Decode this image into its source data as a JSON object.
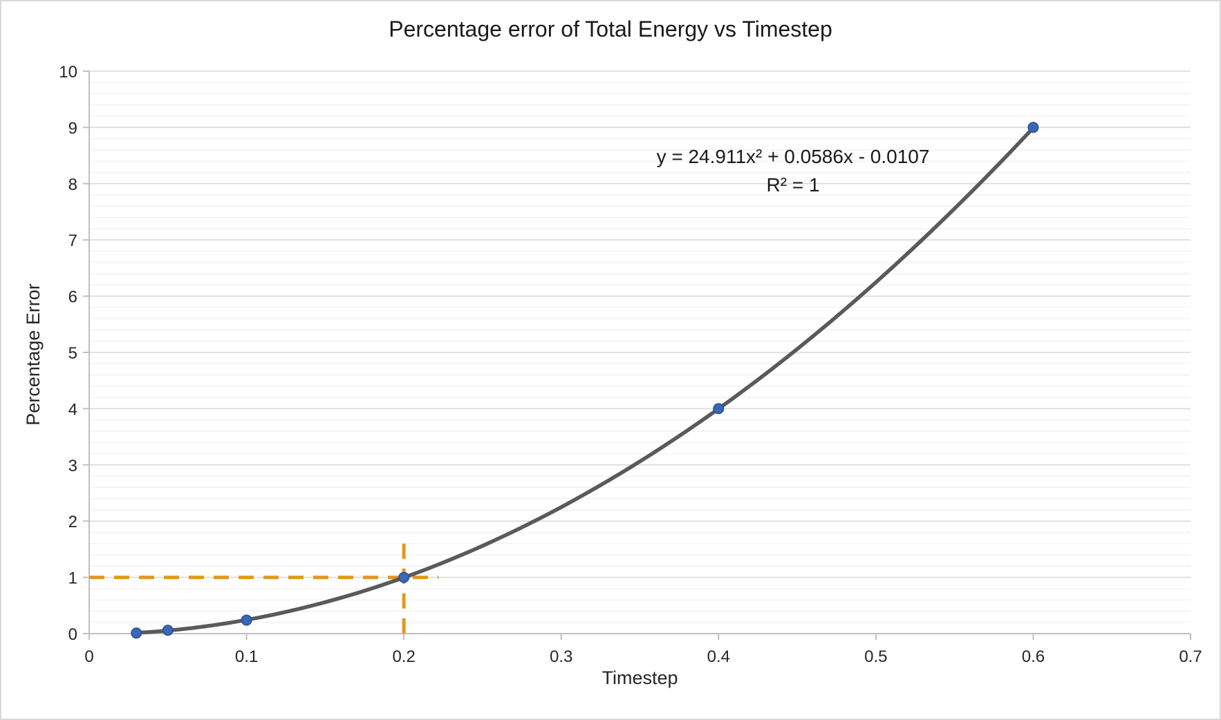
{
  "chart_data": {
    "type": "scatter",
    "title": "Percentage error of Total Energy vs Timestep",
    "xlabel": "Timestep",
    "ylabel": "Percentage Error",
    "xlim": [
      0,
      0.7
    ],
    "ylim": [
      0,
      10
    ],
    "x_tick_step": 0.1,
    "x_tick_labels": [
      "0",
      "0.1",
      "0.2",
      "0.3",
      "0.4",
      "0.5",
      "0.6",
      "0.7"
    ],
    "y_tick_step": 1,
    "y_tick_labels": [
      "0",
      "1",
      "2",
      "3",
      "4",
      "5",
      "6",
      "7",
      "8",
      "9",
      "10"
    ],
    "y_minor_step": 0.2,
    "grid": {
      "y_major": true,
      "y_minor": true,
      "x_major": false
    },
    "legend": "none",
    "points": [
      {
        "x": 0.03,
        "y": 0.01
      },
      {
        "x": 0.05,
        "y": 0.06
      },
      {
        "x": 0.1,
        "y": 0.24
      },
      {
        "x": 0.2,
        "y": 1.0
      },
      {
        "x": 0.4,
        "y": 4.0
      },
      {
        "x": 0.6,
        "y": 9.0
      }
    ],
    "trendline": {
      "kind": "quadratic",
      "coefficients": {
        "a": 24.911,
        "b": 0.0586,
        "c": -0.0107
      },
      "x_domain": [
        0.03,
        0.6
      ],
      "equation_label": "y = 24.911x² + 0.0586x - 0.0107",
      "r_squared_label": "R² = 1"
    },
    "crosshair": {
      "point": {
        "x": 0.2,
        "y": 1
      },
      "h_line": {
        "y": 1,
        "x_from": 0,
        "x_to": 0.222
      },
      "v_line": {
        "x": 0.2,
        "y_from": 0,
        "y_to": 1.6
      }
    },
    "colors": {
      "marker_fill": "#3A67B8",
      "marker_edge": "#2A4F94",
      "trendline": "#5A5A5A",
      "crosshair": "#E5981B",
      "axis_line": "#BFBFBF",
      "grid_major": "#D9D9D9",
      "grid_minor": "#F0F0F0",
      "text": "#262626",
      "chart_border": "#D8D8D8",
      "background": "#FFFFFF"
    }
  }
}
